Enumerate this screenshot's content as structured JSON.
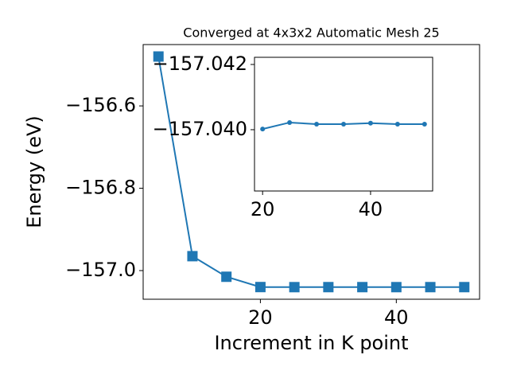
{
  "chart_data": [
    {
      "type": "line",
      "title": "Converged at 4x3x2 Automatic Mesh 25",
      "xlabel": "Increment in K point",
      "ylabel": "Energy (eV)",
      "x": [
        5,
        10,
        15,
        20,
        25,
        30,
        35,
        40,
        45,
        50
      ],
      "values": [
        -156.48,
        -156.965,
        -157.015,
        -157.04002,
        -157.04022,
        -157.04017,
        -157.04017,
        -157.0402,
        -157.04017,
        -157.04017
      ],
      "color": "#1f77b4",
      "marker": "square",
      "xlim": [
        2.75,
        52.25
      ],
      "xticks": [
        20,
        40
      ],
      "ylim": [
        -157.0696,
        -156.451
      ],
      "yticks": [
        {
          "value": -156.6,
          "label": "−156.6"
        },
        {
          "value": -156.8,
          "label": "−156.8"
        },
        {
          "value": -157.0,
          "label": "−157.0"
        }
      ]
    },
    {
      "type": "line",
      "x": [
        20,
        25,
        30,
        35,
        40,
        45,
        50
      ],
      "values": [
        -157.04002,
        -157.04022,
        -157.04017,
        -157.04017,
        -157.0402,
        -157.04017,
        -157.04017
      ],
      "color": "#1f77b4",
      "marker": "circle",
      "xlim": [
        18.5,
        51.5
      ],
      "xticks": [
        20,
        40
      ],
      "ylim": [
        -157.03812,
        -157.04222
      ],
      "yticks": [
        {
          "value": -157.042,
          "label": "−157.042"
        },
        {
          "value": -157.04,
          "label": "−157.040"
        }
      ]
    }
  ]
}
